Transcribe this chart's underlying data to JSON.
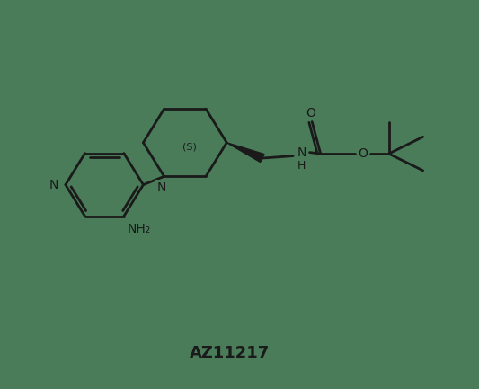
{
  "title": "AZ11217",
  "bg_color": "#4a7c59",
  "line_color": "#1a1a1a",
  "text_color": "#1a1a1a",
  "lw": 2.0,
  "figsize": [
    5.33,
    4.33
  ],
  "dpi": 100,
  "xlim": [
    0,
    10
  ],
  "ylim": [
    0,
    8.66
  ]
}
